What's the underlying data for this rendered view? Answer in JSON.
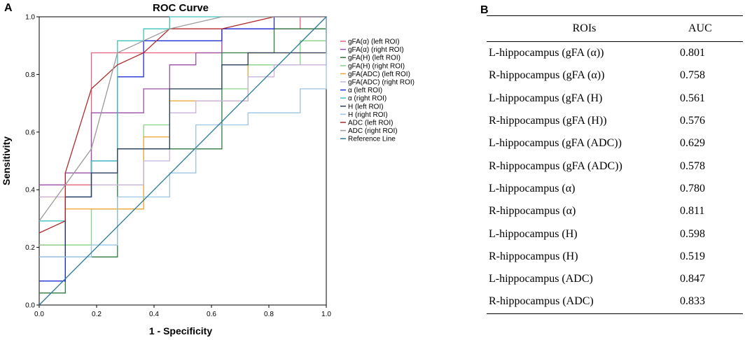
{
  "panel_a_label": "A",
  "panel_b_label": "B",
  "chart_data": {
    "type": "line",
    "title": "ROC Curve",
    "xlabel": "1 - Specificity",
    "ylabel": "Sensitivity",
    "xlim": [
      0,
      1
    ],
    "ylim": [
      0,
      1
    ],
    "x_ticks": [
      "0.0",
      "0.2",
      "0.4",
      "0.6",
      "0.8",
      "1.0"
    ],
    "y_ticks": [
      "0.0",
      "0.2",
      "0.4",
      "0.6",
      "0.8",
      "1.0"
    ],
    "grid": false,
    "legend_position": "right",
    "series": [
      {
        "name": "gFA(α) (left ROI)",
        "color": "#e8607a",
        "points": [
          [
            0,
            0.2083
          ],
          [
            0.0909,
            0.2083
          ],
          [
            0.0909,
            0.4167
          ],
          [
            0.1818,
            0.4167
          ],
          [
            0.1818,
            0.875
          ],
          [
            0.6364,
            0.875
          ],
          [
            0.6364,
            0.9583
          ],
          [
            0.9091,
            0.9583
          ],
          [
            0.9091,
            1
          ],
          [
            1,
            1
          ]
        ]
      },
      {
        "name": "gFA(α) (right ROI)",
        "color": "#9b4fa8",
        "points": [
          [
            0,
            0.4167
          ],
          [
            0.0909,
            0.4167
          ],
          [
            0.0909,
            0.4583
          ],
          [
            0.1818,
            0.4583
          ],
          [
            0.1818,
            0.6667
          ],
          [
            0.3636,
            0.6667
          ],
          [
            0.3636,
            0.75
          ],
          [
            0.4545,
            0.75
          ],
          [
            0.4545,
            0.8333
          ],
          [
            0.5455,
            0.8333
          ],
          [
            0.5455,
            0.875
          ],
          [
            0.6364,
            0.875
          ],
          [
            0.6364,
            0.9583
          ],
          [
            1,
            0.9583
          ],
          [
            1,
            1
          ]
        ]
      },
      {
        "name": "gFA(H) (left ROI)",
        "color": "#2f7a3e",
        "points": [
          [
            0,
            0.0417
          ],
          [
            0.0909,
            0.0417
          ],
          [
            0.0909,
            0.1667
          ],
          [
            0.2727,
            0.1667
          ],
          [
            0.2727,
            0.5417
          ],
          [
            0.6364,
            0.5417
          ],
          [
            0.6364,
            0.875
          ],
          [
            0.8182,
            0.875
          ],
          [
            0.8182,
            0.9583
          ],
          [
            1,
            0.9583
          ],
          [
            1,
            1
          ]
        ]
      },
      {
        "name": "gFA(H) (right ROI)",
        "color": "#86d486",
        "points": [
          [
            0,
            0.2083
          ],
          [
            0.1818,
            0.2083
          ],
          [
            0.1818,
            0.3333
          ],
          [
            0.3636,
            0.3333
          ],
          [
            0.3636,
            0.625
          ],
          [
            0.4545,
            0.625
          ],
          [
            0.4545,
            0.75
          ],
          [
            0.7273,
            0.75
          ],
          [
            0.7273,
            0.8333
          ],
          [
            0.9091,
            0.8333
          ],
          [
            0.9091,
            0.9167
          ],
          [
            1,
            0.9167
          ],
          [
            1,
            1
          ]
        ]
      },
      {
        "name": "gFA(ADC) (left ROI)",
        "color": "#f0a83c",
        "points": [
          [
            0,
            0.375
          ],
          [
            0.0909,
            0.375
          ],
          [
            0.0909,
            0.3333
          ],
          [
            0.3636,
            0.3333
          ],
          [
            0.3636,
            0.5833
          ],
          [
            0.4545,
            0.5833
          ],
          [
            0.4545,
            0.7083
          ],
          [
            0.7273,
            0.7083
          ],
          [
            0.7273,
            0.875
          ],
          [
            1,
            0.875
          ],
          [
            1,
            1
          ]
        ]
      },
      {
        "name": "gFA(ADC) (right ROI)",
        "color": "#c9b3dd",
        "points": [
          [
            0,
            0.375
          ],
          [
            0.1818,
            0.375
          ],
          [
            0.1818,
            0.4167
          ],
          [
            0.3636,
            0.4167
          ],
          [
            0.3636,
            0.5
          ],
          [
            0.4545,
            0.5
          ],
          [
            0.4545,
            0.6667
          ],
          [
            0.5455,
            0.6667
          ],
          [
            0.5455,
            0.7083
          ],
          [
            0.7273,
            0.7083
          ],
          [
            0.7273,
            0.7917
          ],
          [
            0.8182,
            0.7917
          ],
          [
            0.8182,
            0.8333
          ],
          [
            1,
            0.8333
          ],
          [
            1,
            1
          ]
        ]
      },
      {
        "name": "α (left ROI)",
        "color": "#1f2fd8",
        "points": [
          [
            0,
            0.0833
          ],
          [
            0.0909,
            0.0833
          ],
          [
            0.0909,
            0.375
          ],
          [
            0.1818,
            0.375
          ],
          [
            0.1818,
            0.5
          ],
          [
            0.2727,
            0.5
          ],
          [
            0.2727,
            0.7917
          ],
          [
            0.3636,
            0.7917
          ],
          [
            0.3636,
            0.9167
          ],
          [
            0.6364,
            0.9167
          ],
          [
            0.6364,
            0.9583
          ],
          [
            0.8182,
            0.9583
          ],
          [
            0.8182,
            1
          ],
          [
            1,
            1
          ]
        ]
      },
      {
        "name": "α (right ROI)",
        "color": "#3cc4c0",
        "points": [
          [
            0,
            0.2917
          ],
          [
            0.0909,
            0.2917
          ],
          [
            0.0909,
            0.375
          ],
          [
            0.1818,
            0.375
          ],
          [
            0.1818,
            0.5
          ],
          [
            0.2727,
            0.5
          ],
          [
            0.2727,
            0.9167
          ],
          [
            0.3636,
            0.9167
          ],
          [
            0.3636,
            0.9583
          ],
          [
            0.4545,
            0.9583
          ],
          [
            0.4545,
            1
          ],
          [
            1,
            1
          ]
        ]
      },
      {
        "name": "H (left ROI)",
        "color": "#2a3f5f",
        "points": [
          [
            0,
            0.1667
          ],
          [
            0.0909,
            0.1667
          ],
          [
            0.0909,
            0.375
          ],
          [
            0.1818,
            0.375
          ],
          [
            0.1818,
            0.4583
          ],
          [
            0.2727,
            0.4583
          ],
          [
            0.2727,
            0.5417
          ],
          [
            0.4545,
            0.5417
          ],
          [
            0.4545,
            0.75
          ],
          [
            0.6364,
            0.75
          ],
          [
            0.6364,
            0.8333
          ],
          [
            0.7273,
            0.8333
          ],
          [
            0.7273,
            0.875
          ],
          [
            1,
            0.875
          ],
          [
            1,
            1
          ]
        ]
      },
      {
        "name": "H (right ROI)",
        "color": "#9cc4e4",
        "points": [
          [
            0,
            0.1667
          ],
          [
            0.1818,
            0.1667
          ],
          [
            0.1818,
            0.2083
          ],
          [
            0.2727,
            0.2083
          ],
          [
            0.2727,
            0.375
          ],
          [
            0.4545,
            0.375
          ],
          [
            0.4545,
            0.4583
          ],
          [
            0.5455,
            0.4583
          ],
          [
            0.5455,
            0.625
          ],
          [
            0.6364,
            0.625
          ],
          [
            0.6364,
            0.625
          ],
          [
            0.7273,
            0.625
          ],
          [
            0.7273,
            0.6667
          ],
          [
            0.9091,
            0.6667
          ],
          [
            0.9091,
            0.75
          ],
          [
            1,
            0.75
          ],
          [
            1,
            1
          ]
        ]
      },
      {
        "name": "ADC (left ROI)",
        "color": "#b02a2a",
        "points": [
          [
            0,
            0.25
          ],
          [
            0.0909,
            0.2917
          ],
          [
            0.0909,
            0.4583
          ],
          [
            0.1818,
            0.75
          ],
          [
            0.2727,
            0.8333
          ],
          [
            0.3636,
            0.875
          ],
          [
            0.4545,
            0.9583
          ],
          [
            0.6364,
            0.9583
          ],
          [
            0.8182,
            1
          ],
          [
            1,
            1
          ]
        ]
      },
      {
        "name": "ADC (right ROI)",
        "color": "#9a9a9a",
        "points": [
          [
            0,
            0.2917
          ],
          [
            0.0909,
            0.4167
          ],
          [
            0.1818,
            0.5417
          ],
          [
            0.2727,
            0.875
          ],
          [
            0.3636,
            0.9167
          ],
          [
            0.4545,
            0.9583
          ],
          [
            0.6364,
            1
          ],
          [
            1,
            1
          ]
        ]
      },
      {
        "name": "Reference Line",
        "color": "#2b7a9a",
        "points": [
          [
            0,
            0
          ],
          [
            1,
            1
          ]
        ]
      }
    ]
  },
  "table": {
    "headers": [
      "ROIs",
      "AUC"
    ],
    "rows": [
      {
        "roi": "L-hippocampus (gFA (α))",
        "auc": "0.801"
      },
      {
        "roi": "R-hippocampus (gFA (α))",
        "auc": "0.758"
      },
      {
        "roi": "L-hippocampus (gFA (H)",
        "auc": "0.561"
      },
      {
        "roi": "R-hippocampus (gFA (H))",
        "auc": "0.576"
      },
      {
        "roi": "L-hippocampus (gFA (ADC))",
        "auc": "0.629"
      },
      {
        "roi": "R-hippocampus (gFA (ADC))",
        "auc": "0.578"
      },
      {
        "roi": "L-hippocampus (α)",
        "auc": "0.780"
      },
      {
        "roi": "R-hippocampus (α)",
        "auc": "0.811"
      },
      {
        "roi": "L-hippocampus (H)",
        "auc": "0.598"
      },
      {
        "roi": "R-hippocampus (H)",
        "auc": "0.519"
      },
      {
        "roi": "L-hippocampus (ADC)",
        "auc": "0.847"
      },
      {
        "roi": "R-hippocampus (ADC)",
        "auc": "0.833"
      }
    ]
  }
}
